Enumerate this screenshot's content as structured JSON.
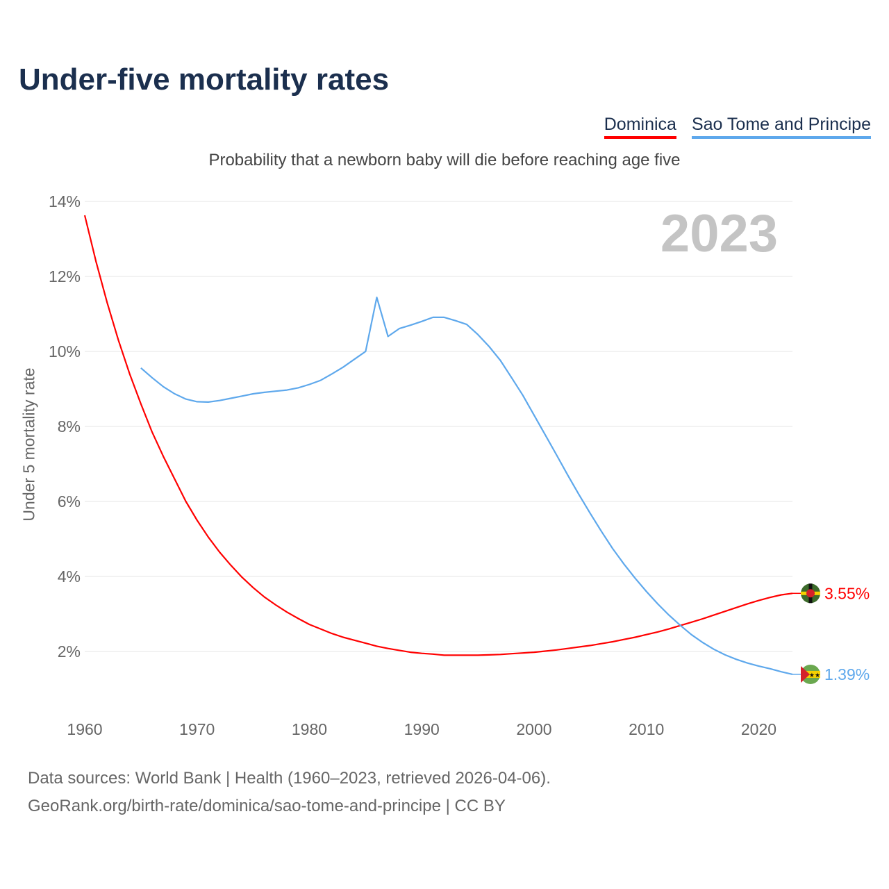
{
  "title": "Under-five mortality rates",
  "subtitle": "Probability that a newborn baby will die before reaching age five",
  "year_label": "2023",
  "sources": [
    "Data sources: World Bank | Health (1960–2023, retrieved 2026-04-06).",
    "GeoRank.org/birth-rate/dominica/sao-tome-and-principe | CC BY"
  ],
  "chart_data": {
    "type": "line",
    "title": "Under-five mortality rates",
    "ylabel": "Under 5 mortality rate",
    "xlabel": "",
    "xlim": [
      1960,
      2023
    ],
    "ylim": [
      0,
      14
    ],
    "yticks": [
      2,
      4,
      6,
      8,
      10,
      12,
      14
    ],
    "ytick_labels": [
      "2%",
      "4%",
      "6%",
      "8%",
      "10%",
      "12%",
      "14%"
    ],
    "xticks": [
      1960,
      1970,
      1980,
      1990,
      2000,
      2010,
      2020
    ],
    "xtick_labels": [
      "1960",
      "1970",
      "1980",
      "1990",
      "2000",
      "2010",
      "2020"
    ],
    "grid": true,
    "legend_placement": "top-right",
    "series": [
      {
        "name": "Dominica",
        "color": "#ff0000",
        "start": 1960,
        "end_label": "3.55%",
        "values": [
          13.63,
          12.4,
          11.3,
          10.3,
          9.4,
          8.6,
          7.85,
          7.2,
          6.6,
          6.0,
          5.5,
          5.05,
          4.65,
          4.3,
          3.98,
          3.7,
          3.45,
          3.24,
          3.05,
          2.88,
          2.72,
          2.6,
          2.48,
          2.38,
          2.3,
          2.22,
          2.14,
          2.08,
          2.03,
          1.98,
          1.95,
          1.93,
          1.9,
          1.9,
          1.9,
          1.9,
          1.91,
          1.92,
          1.94,
          1.96,
          1.98,
          2.01,
          2.04,
          2.08,
          2.12,
          2.16,
          2.21,
          2.26,
          2.32,
          2.38,
          2.45,
          2.52,
          2.6,
          2.69,
          2.78,
          2.87,
          2.97,
          3.07,
          3.17,
          3.27,
          3.36,
          3.44,
          3.51,
          3.55
        ]
      },
      {
        "name": "Sao Tome and Principe",
        "color": "#5ea8ec",
        "start": 1965,
        "end_label": "1.39%",
        "values": [
          9.56,
          9.3,
          9.06,
          8.87,
          8.73,
          8.66,
          8.65,
          8.69,
          8.75,
          8.81,
          8.87,
          8.91,
          8.94,
          8.97,
          9.03,
          9.12,
          9.23,
          9.4,
          9.58,
          9.79,
          10.0,
          11.44,
          10.4,
          10.61,
          10.7,
          10.8,
          10.91,
          10.91,
          10.82,
          10.72,
          10.45,
          10.13,
          9.76,
          9.3,
          8.83,
          8.3,
          7.77,
          7.24,
          6.7,
          6.18,
          5.68,
          5.2,
          4.74,
          4.33,
          3.95,
          3.6,
          3.27,
          2.97,
          2.7,
          2.45,
          2.24,
          2.06,
          1.91,
          1.79,
          1.69,
          1.61,
          1.54,
          1.46,
          1.39
        ]
      }
    ]
  }
}
